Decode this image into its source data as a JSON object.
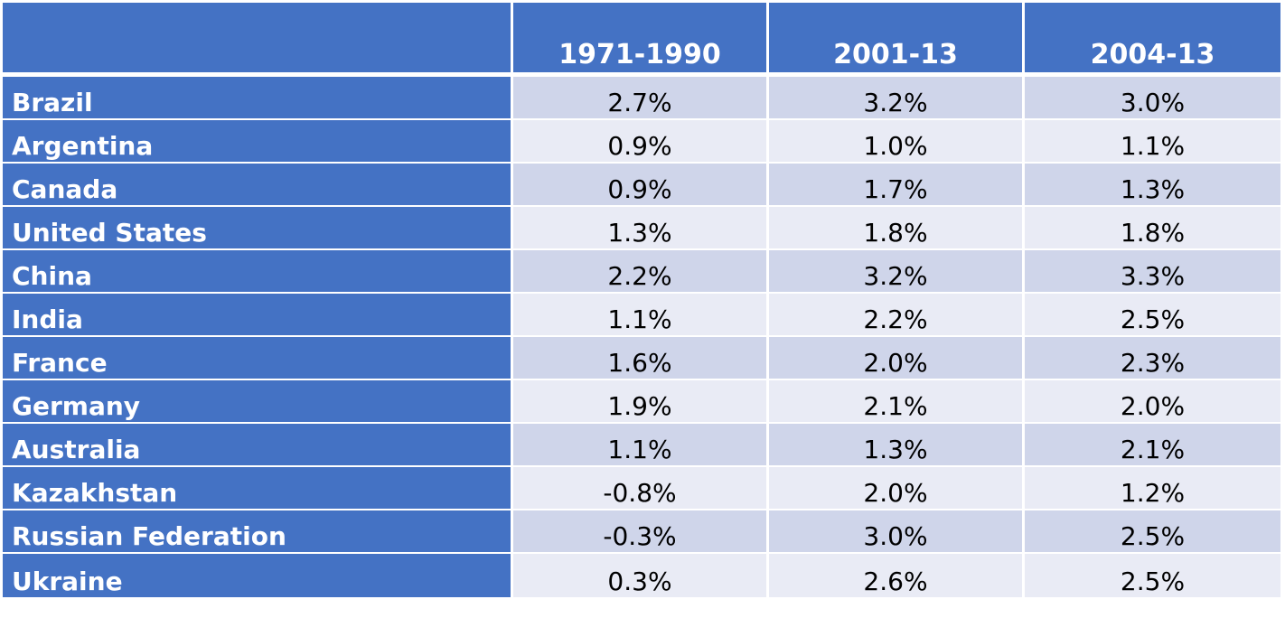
{
  "chart_data": {
    "type": "table",
    "columns": [
      "",
      "1971-1990",
      "2001-13",
      "2004-13"
    ],
    "rows": [
      {
        "country": "Brazil",
        "values": [
          "2.7%",
          "3.2%",
          "3.0%"
        ]
      },
      {
        "country": "Argentina",
        "values": [
          "0.9%",
          "1.0%",
          "1.1%"
        ]
      },
      {
        "country": "Canada",
        "values": [
          "0.9%",
          "1.7%",
          "1.3%"
        ]
      },
      {
        "country": "United States",
        "values": [
          "1.3%",
          "1.8%",
          "1.8%"
        ]
      },
      {
        "country": "China",
        "values": [
          "2.2%",
          "3.2%",
          "3.3%"
        ]
      },
      {
        "country": "India",
        "values": [
          "1.1%",
          "2.2%",
          "2.5%"
        ]
      },
      {
        "country": "France",
        "values": [
          "1.6%",
          "2.0%",
          "2.3%"
        ]
      },
      {
        "country": "Germany",
        "values": [
          "1.9%",
          "2.1%",
          "2.0%"
        ]
      },
      {
        "country": "Australia",
        "values": [
          "1.1%",
          "1.3%",
          "2.1%"
        ]
      },
      {
        "country": "Kazakhstan",
        "values": [
          "-0.8%",
          "2.0%",
          "1.2%"
        ]
      },
      {
        "country": "Russian Federation",
        "values": [
          "-0.3%",
          "3.0%",
          "2.5%"
        ]
      },
      {
        "country": "Ukraine",
        "values": [
          "0.3%",
          "2.6%",
          "2.5%"
        ]
      }
    ]
  },
  "colors": {
    "header_bg": "#4472c4",
    "row_odd_bg": "#cfd5ea",
    "row_even_bg": "#e9ebf5",
    "header_text": "#ffffff",
    "cell_text": "#000000"
  }
}
